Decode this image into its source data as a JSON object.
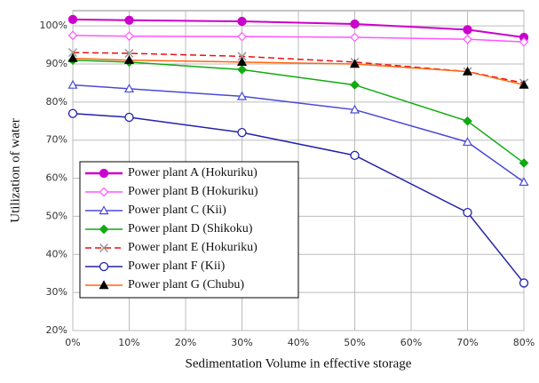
{
  "chart_data": {
    "type": "line",
    "xlabel": "Sedimentation Volume in effective storage",
    "ylabel": "Utilization of water",
    "x": [
      0,
      10,
      30,
      50,
      70,
      80
    ],
    "xlim": [
      0,
      80
    ],
    "xticks": [
      {
        "value": 0,
        "label": "0%"
      },
      {
        "value": 10,
        "label": "10%"
      },
      {
        "value": 20,
        "label": "20%"
      },
      {
        "value": 30,
        "label": "30%"
      },
      {
        "value": 40,
        "label": "40%"
      },
      {
        "value": 50,
        "label": "50%"
      },
      {
        "value": 60,
        "label": "60%"
      },
      {
        "value": 70,
        "label": "70%"
      },
      {
        "value": 80,
        "label": "80%"
      }
    ],
    "ylim": [
      20,
      104
    ],
    "yticks": [
      {
        "value": 20,
        "label": "20%"
      },
      {
        "value": 30,
        "label": "30%"
      },
      {
        "value": 40,
        "label": "40%"
      },
      {
        "value": 50,
        "label": "50%"
      },
      {
        "value": 60,
        "label": "60%"
      },
      {
        "value": 70,
        "label": "70%"
      },
      {
        "value": 80,
        "label": "80%"
      },
      {
        "value": 90,
        "label": "90%"
      },
      {
        "value": 100,
        "label": "100%"
      }
    ],
    "grid": true,
    "legend": "lower-left",
    "series": [
      {
        "name": "Power plant A (Hokuriku)",
        "color": "#cc00cc",
        "marker": "circle-filled",
        "values": [
          101.7,
          101.5,
          101.2,
          100.5,
          99,
          97
        ]
      },
      {
        "name": "Power plant B (Hokuriku)",
        "color": "#ff55ff",
        "marker": "diamond-open",
        "values": [
          97.5,
          97.3,
          97.2,
          97,
          96.5,
          95.8
        ]
      },
      {
        "name": "Power plant C (Kii)",
        "color": "#4a4ad8",
        "marker": "triangle-open",
        "values": [
          84.5,
          83.5,
          81.5,
          78,
          69.5,
          59
        ]
      },
      {
        "name": "Power plant D (Shikoku)",
        "color": "#11aa11",
        "marker": "diamond-filled",
        "values": [
          91,
          90.5,
          88.5,
          84.5,
          75,
          64
        ]
      },
      {
        "name": "Power plant E (Hokuriku)",
        "color": "#ee1111",
        "marker": "x",
        "dashed": true,
        "values": [
          93,
          92.8,
          92,
          90.5,
          88,
          85
        ]
      },
      {
        "name": "Power plant F (Kii)",
        "color": "#2222aa",
        "marker": "circle-open",
        "values": [
          77,
          76,
          72,
          66,
          51,
          32.5
        ]
      },
      {
        "name": "Power plant G (Chubu)",
        "color": "#ff6611",
        "marker": "triangle-black",
        "values": [
          91.5,
          91,
          90.5,
          90,
          88,
          84.5
        ]
      }
    ]
  }
}
